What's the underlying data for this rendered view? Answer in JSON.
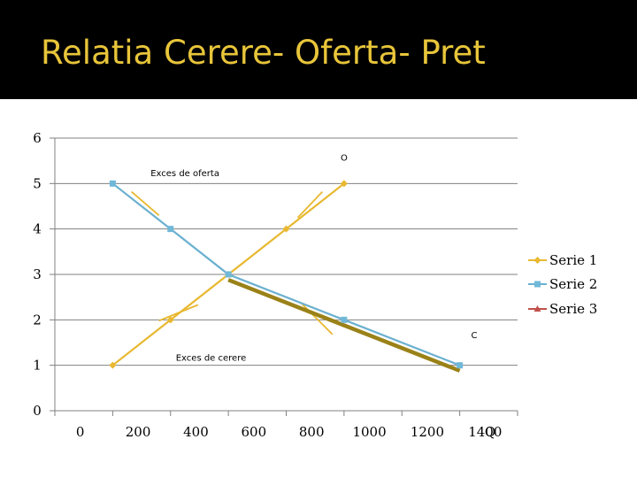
{
  "slide": {
    "title": "Relatia Cerere- Oferta- Pret"
  },
  "colors": {
    "supply": "#e8b830",
    "demand": "#6ab0d0",
    "demand_marker": "#70b8d8",
    "thick_demand": "#9a8218",
    "serie3": "#c0504d",
    "grid": "#808080",
    "title": "#e8c53a"
  },
  "chart_data": {
    "type": "line",
    "xlabel": "Q",
    "ylabel": "",
    "x_ticks": [
      "0",
      "200",
      "400",
      "600",
      "800",
      "1000",
      "1200",
      "1400"
    ],
    "y_ticks": [
      0,
      1,
      2,
      3,
      4,
      5,
      6
    ],
    "xlim": [
      0,
      1600
    ],
    "ylim": [
      0,
      6
    ],
    "grid": true,
    "legend_position": "right",
    "series": [
      {
        "name": "Serie 1",
        "points": [
          [
            200,
            1
          ],
          [
            400,
            2
          ],
          [
            600,
            3
          ],
          [
            800,
            4
          ],
          [
            1000,
            5
          ]
        ]
      },
      {
        "name": "Serie 2",
        "points": [
          [
            200,
            5
          ],
          [
            400,
            4
          ],
          [
            600,
            3
          ],
          [
            1000,
            2
          ],
          [
            1400,
            1
          ]
        ]
      },
      {
        "name": "Serie 3",
        "points": []
      }
    ],
    "thick_line": [
      [
        600,
        2.88
      ],
      [
        1400,
        0.88
      ]
    ],
    "curve_labels": [
      {
        "text": "O",
        "x": 1000,
        "y": 5.5
      },
      {
        "text": "C",
        "x": 1450,
        "y": 1.6
      }
    ],
    "annotations": [
      {
        "text": "Exces de oferta",
        "x": 450,
        "y": 5.16
      },
      {
        "text": "Exces de cerere",
        "x": 540,
        "y": 1.1
      }
    ],
    "arrows": [
      [
        [
          265,
          4.82
        ],
        [
          360,
          4.3
        ]
      ],
      [
        [
          925,
          4.82
        ],
        [
          840,
          4.25
        ]
      ],
      [
        [
          360,
          1.98
        ],
        [
          495,
          2.33
        ]
      ],
      [
        [
          960,
          1.68
        ],
        [
          850,
          2.38
        ]
      ]
    ]
  }
}
